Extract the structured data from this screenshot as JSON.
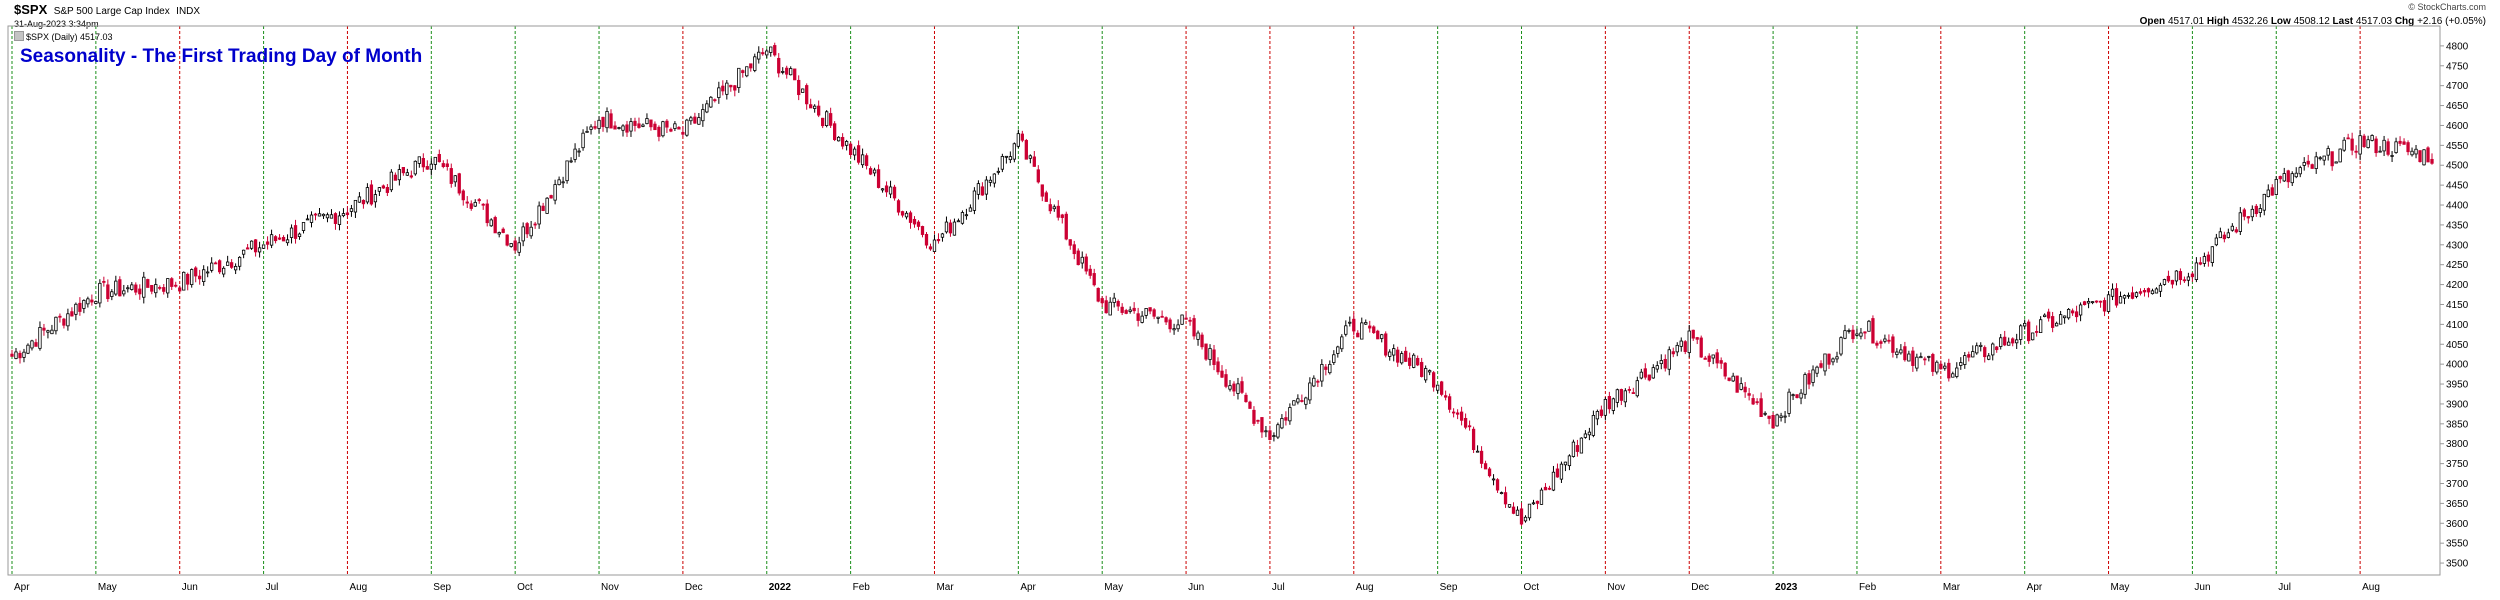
{
  "header": {
    "symbol": "$SPX",
    "name": "S&P 500 Large Cap Index",
    "exchange": "INDX",
    "datetime": "31-Aug-2023 3:34pm",
    "legend": "$SPX (Daily) 4517.03",
    "ohlc_text": [
      "Open",
      "4517.01",
      "High",
      "4532.26",
      "Low",
      "4508.12",
      "Last",
      "4517.03",
      "Chg",
      "+2.16 (+0.05%)"
    ],
    "brand": "© StockCharts.com"
  },
  "colors": {
    "up": "#000000",
    "down": "#cc0033",
    "green_line": "#1a8f1a",
    "red_line": "#cc0000",
    "title": "#0000cc"
  },
  "chart_data": {
    "type": "candlestick",
    "title": "Seasonality - The First Trading Day of Month",
    "ylim": [
      3470,
      4850
    ],
    "yticks": [
      3500,
      3550,
      3600,
      3650,
      3700,
      3750,
      3800,
      3850,
      3900,
      3950,
      4000,
      4050,
      4100,
      4150,
      4200,
      4250,
      4300,
      4350,
      4400,
      4450,
      4500,
      4550,
      4600,
      4650,
      4700,
      4750,
      4800
    ],
    "xticks": [
      {
        "label": "Apr",
        "bold": false
      },
      {
        "label": "May",
        "bold": false
      },
      {
        "label": "Jun",
        "bold": false
      },
      {
        "label": "Jul",
        "bold": false
      },
      {
        "label": "Aug",
        "bold": false
      },
      {
        "label": "Sep",
        "bold": false
      },
      {
        "label": "Oct",
        "bold": false
      },
      {
        "label": "Nov",
        "bold": false
      },
      {
        "label": "Dec",
        "bold": false
      },
      {
        "label": "2022",
        "bold": true
      },
      {
        "label": "Feb",
        "bold": false
      },
      {
        "label": "Mar",
        "bold": false
      },
      {
        "label": "Apr",
        "bold": false
      },
      {
        "label": "May",
        "bold": false
      },
      {
        "label": "Jun",
        "bold": false
      },
      {
        "label": "Jul",
        "bold": false
      },
      {
        "label": "Aug",
        "bold": false
      },
      {
        "label": "Sep",
        "bold": false
      },
      {
        "label": "Oct",
        "bold": false
      },
      {
        "label": "Nov",
        "bold": false
      },
      {
        "label": "Dec",
        "bold": false
      },
      {
        "label": "2023",
        "bold": true
      },
      {
        "label": "Feb",
        "bold": false
      },
      {
        "label": "Mar",
        "bold": false
      },
      {
        "label": "Apr",
        "bold": false
      },
      {
        "label": "May",
        "bold": false
      },
      {
        "label": "Jun",
        "bold": false
      },
      {
        "label": "Jul",
        "bold": false
      },
      {
        "label": "Aug",
        "bold": false
      }
    ],
    "month_start_day": [
      {
        "first_day": "up"
      },
      {
        "first_day": "up"
      },
      {
        "first_day": "down"
      },
      {
        "first_day": "up"
      },
      {
        "first_day": "down"
      },
      {
        "first_day": "up"
      },
      {
        "first_day": "up"
      },
      {
        "first_day": "up"
      },
      {
        "first_day": "down"
      },
      {
        "first_day": "up"
      },
      {
        "first_day": "up"
      },
      {
        "first_day": "down"
      },
      {
        "first_day": "up"
      },
      {
        "first_day": "up"
      },
      {
        "first_day": "down"
      },
      {
        "first_day": "down"
      },
      {
        "first_day": "down"
      },
      {
        "first_day": "up"
      },
      {
        "first_day": "up"
      },
      {
        "first_day": "down"
      },
      {
        "first_day": "down"
      },
      {
        "first_day": "up"
      },
      {
        "first_day": "up"
      },
      {
        "first_day": "down"
      },
      {
        "first_day": "up"
      },
      {
        "first_day": "down"
      },
      {
        "first_day": "up"
      },
      {
        "first_day": "up"
      },
      {
        "first_day": "down"
      }
    ],
    "closes_at_month_starts": [
      4020,
      4180,
      4205,
      4300,
      4390,
      4520,
      4300,
      4620,
      4580,
      4790,
      4540,
      4300,
      4560,
      4150,
      4100,
      3820,
      4100,
      3960,
      3600,
      3900,
      4060,
      3860,
      4100,
      3980,
      4080,
      4160,
      4240,
      4450,
      4560
    ],
    "last_close": 4517.03
  }
}
